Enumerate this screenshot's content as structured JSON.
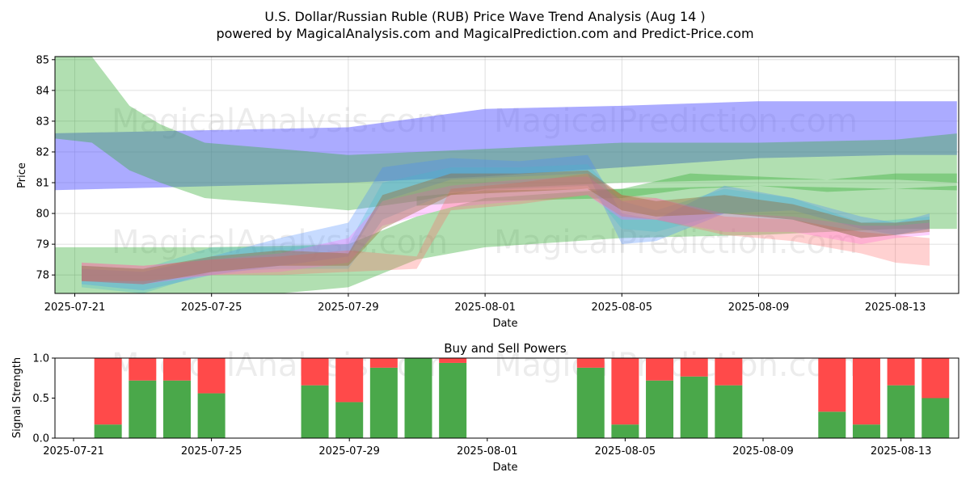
{
  "chart_data": [
    {
      "type": "area",
      "title": "U.S. Dollar/Russian Ruble (RUB) Price Wave Trend Analysis (Aug 14 )",
      "subtitle": "powered by MagicalAnalysis.com and MagicalPrediction.com and Predict-Price.com",
      "xlabel": "Date",
      "ylabel": "Price",
      "ylim": [
        77.4,
        85.1
      ],
      "yticks": [
        78,
        79,
        80,
        81,
        82,
        83,
        84,
        85
      ],
      "xtick_days": [
        0,
        4,
        8,
        12,
        16,
        20,
        24
      ],
      "xtick_labels": [
        "2025-07-21",
        "2025-07-25",
        "2025-07-29",
        "2025-08-01",
        "2025-08-05",
        "2025-08-09",
        "2025-08-13"
      ],
      "grid": true,
      "watermarks": [
        "MagicalAnalysis.com",
        "MagicalPrediction.com"
      ],
      "bands": [
        {
          "color": "#6666ff",
          "alpha": 0.55,
          "x": [
            -0.8,
            8,
            12,
            16,
            20,
            24,
            25.8
          ],
          "low": [
            80.75,
            81,
            81.2,
            81.5,
            81.8,
            81.9,
            81.9
          ],
          "high": [
            82.6,
            82.8,
            83.4,
            83.5,
            83.65,
            83.65,
            83.65
          ]
        },
        {
          "color": "#33aa33",
          "alpha": 0.38,
          "x": [
            -1.1,
            0.5,
            1.6,
            2.5,
            3.8,
            6,
            8,
            10,
            12,
            16,
            20,
            24,
            25.8
          ],
          "low": [
            82.5,
            82.3,
            81.4,
            81.0,
            80.5,
            80.3,
            80.1,
            80.4,
            80.8,
            81.0,
            81.1,
            81.1,
            81.0
          ],
          "high": [
            85.1,
            85.1,
            83.5,
            82.9,
            82.3,
            82.1,
            81.9,
            82.0,
            82.1,
            82.3,
            82.3,
            82.4,
            82.6
          ]
        },
        {
          "color": "#33aa33",
          "alpha": 0.38,
          "x": [
            -0.8,
            4,
            8,
            10,
            12,
            16,
            20,
            24,
            25.8
          ],
          "low": [
            77.2,
            77.2,
            77.6,
            78.5,
            78.9,
            79.2,
            79.3,
            79.5,
            79.5
          ],
          "high": [
            78.9,
            78.9,
            79.0,
            79.9,
            80.5,
            80.8,
            80.9,
            80.8,
            80.9
          ]
        },
        {
          "color": "#33aa33",
          "alpha": 0.38,
          "x": [
            10,
            12,
            16,
            18,
            20,
            22,
            24,
            25.8
          ],
          "low": [
            80.25,
            80.4,
            80.5,
            80.8,
            80.9,
            80.7,
            80.8,
            80.75
          ],
          "high": [
            80.55,
            80.75,
            80.8,
            81.3,
            81.2,
            81.1,
            81.3,
            81.3
          ]
        },
        {
          "color": "#4488ff",
          "alpha": 0.3,
          "x": [
            0.2,
            2,
            4,
            6,
            8,
            9,
            11,
            13,
            15,
            16,
            17,
            19,
            21,
            23,
            24,
            25
          ],
          "low": [
            77.7,
            77.5,
            78.0,
            78.3,
            78.6,
            80.4,
            81.1,
            81.2,
            81.3,
            79.0,
            79.1,
            80.0,
            80.1,
            79.5,
            79.3,
            79.5
          ],
          "high": [
            78.2,
            78.1,
            78.6,
            79.2,
            79.7,
            81.5,
            81.8,
            81.7,
            81.9,
            80.0,
            79.8,
            80.9,
            80.5,
            79.9,
            79.7,
            80.0
          ]
        },
        {
          "color": "#44bbcc",
          "alpha": 0.3,
          "x": [
            0.2,
            2,
            4,
            6,
            8,
            9,
            11,
            13,
            15,
            16,
            17,
            19,
            21,
            23,
            24,
            25
          ],
          "low": [
            77.6,
            77.4,
            78.1,
            78.2,
            78.2,
            79.8,
            80.7,
            80.8,
            80.9,
            79.5,
            79.4,
            80.0,
            79.8,
            79.2,
            79.3,
            79.5
          ],
          "high": [
            78.3,
            78.2,
            78.9,
            78.9,
            79.0,
            81.0,
            81.5,
            81.5,
            81.6,
            80.4,
            80.1,
            80.8,
            80.5,
            79.7,
            79.8,
            79.9
          ]
        },
        {
          "color": "#ff66ff",
          "alpha": 0.3,
          "x": [
            0.2,
            2,
            4,
            6,
            8,
            9,
            11,
            13,
            15,
            16,
            17,
            19,
            21,
            23,
            24,
            25
          ],
          "low": [
            77.8,
            77.7,
            78.0,
            78.1,
            78.4,
            79.6,
            80.2,
            80.4,
            80.6,
            79.8,
            79.8,
            79.4,
            79.4,
            79.0,
            79.2,
            79.3
          ],
          "high": [
            78.4,
            78.3,
            78.5,
            78.7,
            79.2,
            80.4,
            80.9,
            81.1,
            81.2,
            80.4,
            80.5,
            80.0,
            79.9,
            79.6,
            79.6,
            79.7
          ]
        },
        {
          "color": "#ff6666",
          "alpha": 0.3,
          "x": [
            0.2,
            2,
            4,
            6,
            8,
            10,
            11,
            13,
            15,
            16,
            17,
            19,
            21,
            23,
            24,
            25
          ],
          "low": [
            77.8,
            77.8,
            78.0,
            78.0,
            78.1,
            78.2,
            80.1,
            80.3,
            80.6,
            79.9,
            79.8,
            79.3,
            79.1,
            78.7,
            78.4,
            78.3
          ],
          "high": [
            78.4,
            78.3,
            78.5,
            78.6,
            78.8,
            78.6,
            80.8,
            81.0,
            81.3,
            80.6,
            80.5,
            79.9,
            79.8,
            79.4,
            79.3,
            79.2
          ]
        },
        {
          "color": "#996633",
          "alpha": 0.4,
          "x": [
            0.2,
            2,
            4,
            6,
            8,
            9,
            11,
            13,
            15,
            16,
            17,
            19,
            21,
            23,
            24,
            25
          ],
          "low": [
            77.8,
            77.7,
            78.1,
            78.3,
            78.3,
            79.5,
            80.6,
            80.7,
            80.8,
            80.1,
            79.9,
            80.0,
            79.8,
            79.2,
            79.3,
            79.4
          ],
          "high": [
            78.3,
            78.2,
            78.6,
            78.8,
            78.7,
            80.6,
            81.3,
            81.3,
            81.4,
            80.6,
            80.4,
            80.6,
            80.3,
            79.7,
            79.7,
            79.8
          ]
        }
      ]
    },
    {
      "type": "bar",
      "title": "Buy and Sell Powers",
      "xlabel": "Date",
      "ylabel": "Signal Strength",
      "ylim": [
        0,
        1
      ],
      "yticks": [
        0.0,
        0.5,
        1.0
      ],
      "ytick_labels": [
        "0.0",
        "0.5",
        "1.0"
      ],
      "xtick_days": [
        0,
        4,
        8,
        12,
        16,
        20,
        24
      ],
      "xtick_labels": [
        "2025-07-21",
        "2025-07-25",
        "2025-07-29",
        "2025-08-01",
        "2025-08-05",
        "2025-08-09",
        "2025-08-13"
      ],
      "watermarks": [
        "MagicalAnalysis.com",
        "MagicalPrediction.com"
      ],
      "colors": {
        "buy": "#4aa84a",
        "sell": "#ff4a4a"
      },
      "series": [
        {
          "name": "Buy",
          "days": [
            1,
            2,
            3,
            4,
            7,
            8,
            9,
            10,
            11,
            15,
            16,
            17,
            18,
            19,
            22,
            23,
            24,
            25
          ],
          "values": [
            0.17,
            0.72,
            0.72,
            0.56,
            0.66,
            0.45,
            0.88,
            1.0,
            0.94,
            0.88,
            0.17,
            0.72,
            0.77,
            0.66,
            0.33,
            0.17,
            0.66,
            0.5
          ]
        },
        {
          "name": "Sell",
          "days": [
            1,
            2,
            3,
            4,
            7,
            8,
            9,
            10,
            11,
            15,
            16,
            17,
            18,
            19,
            22,
            23,
            24,
            25
          ],
          "values": [
            0.83,
            0.28,
            0.28,
            0.44,
            0.34,
            0.55,
            0.12,
            0.0,
            0.06,
            0.12,
            0.83,
            0.28,
            0.23,
            0.34,
            0.67,
            0.83,
            0.34,
            0.5
          ]
        }
      ]
    }
  ]
}
